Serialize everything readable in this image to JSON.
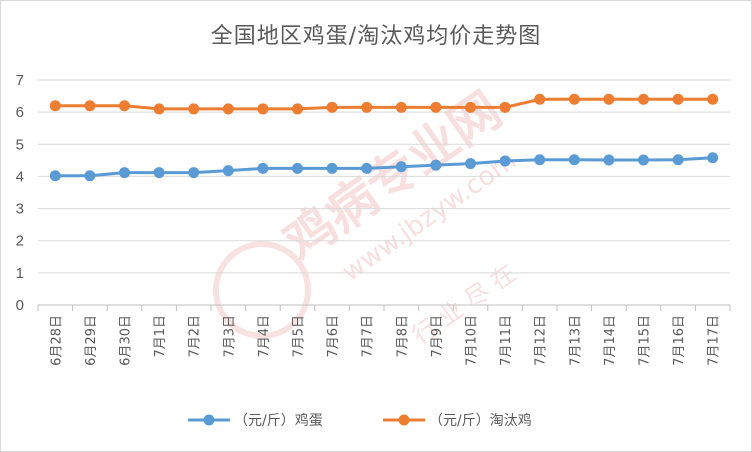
{
  "chart_data": {
    "type": "line",
    "title": "全国地区鸡蛋/淘汰鸡均价走势图",
    "xlabel": "",
    "ylabel": "",
    "ylim": [
      0,
      7
    ],
    "yticks": [
      0,
      1,
      2,
      3,
      4,
      5,
      6,
      7
    ],
    "grid": true,
    "legend_position": "bottom",
    "categories": [
      "6月28日",
      "6月29日",
      "6月30日",
      "7月1日",
      "7月2日",
      "7月3日",
      "7月4日",
      "7月5日",
      "7月6日",
      "7月7日",
      "7月8日",
      "7月9日",
      "7月10日",
      "7月11日",
      "7月12日",
      "7月13日",
      "7月14日",
      "7月15日",
      "7月16日",
      "7月17日"
    ],
    "series": [
      {
        "name": "（元/斤）鸡蛋",
        "color": "#5b9bd5",
        "values": [
          4.02,
          4.02,
          4.12,
          4.12,
          4.12,
          4.18,
          4.25,
          4.25,
          4.25,
          4.25,
          4.3,
          4.35,
          4.4,
          4.48,
          4.52,
          4.52,
          4.51,
          4.51,
          4.52,
          4.58
        ]
      },
      {
        "name": "（元/斤）淘汰鸡",
        "color": "#ed7d31",
        "values": [
          6.2,
          6.2,
          6.2,
          6.1,
          6.1,
          6.1,
          6.1,
          6.1,
          6.15,
          6.15,
          6.15,
          6.15,
          6.15,
          6.15,
          6.4,
          6.4,
          6.4,
          6.4,
          6.4,
          6.4
        ]
      }
    ]
  },
  "watermark": {
    "brand": "鸡病专业网",
    "url": "www.jbzyw.com",
    "tagline": "行 业 尽 在",
    "color": "#f2c4c4"
  }
}
